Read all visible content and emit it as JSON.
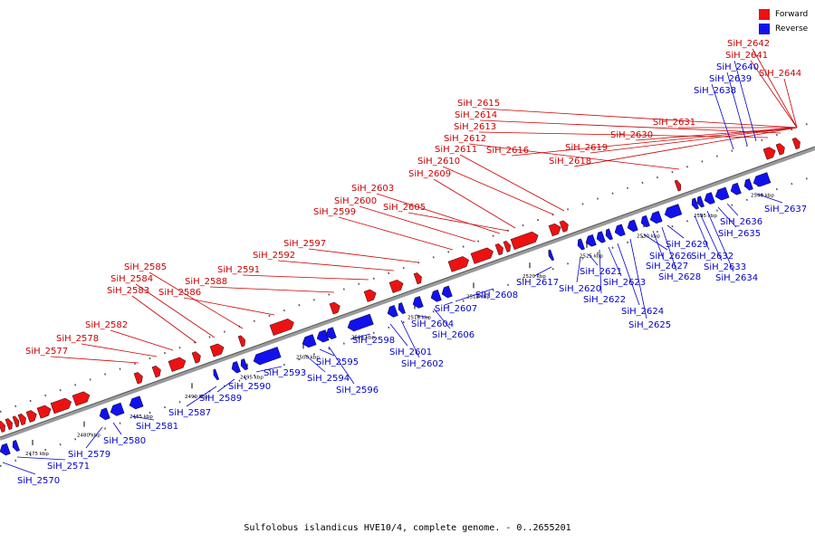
{
  "legend": {
    "forward_label": "Forward",
    "reverse_label": "Reverse",
    "forward_color": "#ee1111",
    "reverse_color": "#1111ee"
  },
  "caption": "Sulfolobus islandicus HVE10/4, complete genome. - 0..2655201",
  "scale_unit": "kbp",
  "ruler_ticks": [
    "2475 kbp",
    "2480 kbp",
    "2485 kbp",
    "2490 kbp",
    "2495 kbp",
    "2500 kbp",
    "2505 kbp",
    "2510 kbp",
    "2515 kbp",
    "2520 kbp",
    "2525 kbp",
    "2530 kbp",
    "2535 kbp",
    "2540 kbp"
  ],
  "forward_genes": [
    "SiH_2577",
    "SiH_2578",
    "SiH_2582",
    "SiH_2583",
    "SiH_2584",
    "SiH_2585",
    "SiH_2586",
    "SiH_2588",
    "SiH_2591",
    "SiH_2592",
    "SiH_2597",
    "SiH_2599",
    "SiH_2600",
    "SiH_2603",
    "SiH_2605",
    "SiH_2609",
    "SiH_2610",
    "SiH_2611",
    "SiH_2612",
    "SiH_2613",
    "SiH_2614",
    "SiH_2615",
    "SiH_2616",
    "SiH_2618",
    "SiH_2619",
    "SiH_2630",
    "SiH_2631",
    "SiH_2641",
    "SiH_2642",
    "SiH_2644"
  ],
  "reverse_genes": [
    "SiH_2570",
    "SiH_2571",
    "SiH_2579",
    "SiH_2580",
    "SiH_2581",
    "SiH_2587",
    "SiH_2589",
    "SiH_2590",
    "SiH_2593",
    "SiH_2594",
    "SiH_2595",
    "SiH_2596",
    "SiH_2598",
    "SiH_2601",
    "SiH_2602",
    "SiH_2604",
    "SiH_2606",
    "SiH_2607",
    "SiH_2608",
    "SiH_2617",
    "SiH_2620",
    "SiH_2621",
    "SiH_2622",
    "SiH_2623",
    "SiH_2624",
    "SiH_2625",
    "SiH_2626",
    "SiH_2627",
    "SiH_2628",
    "SiH_2629",
    "SiH_2632",
    "SiH_2633",
    "SiH_2634",
    "SiH_2635",
    "SiH_2636",
    "SiH_2637",
    "SiH_2638",
    "SiH_2639",
    "SiH_2640"
  ]
}
